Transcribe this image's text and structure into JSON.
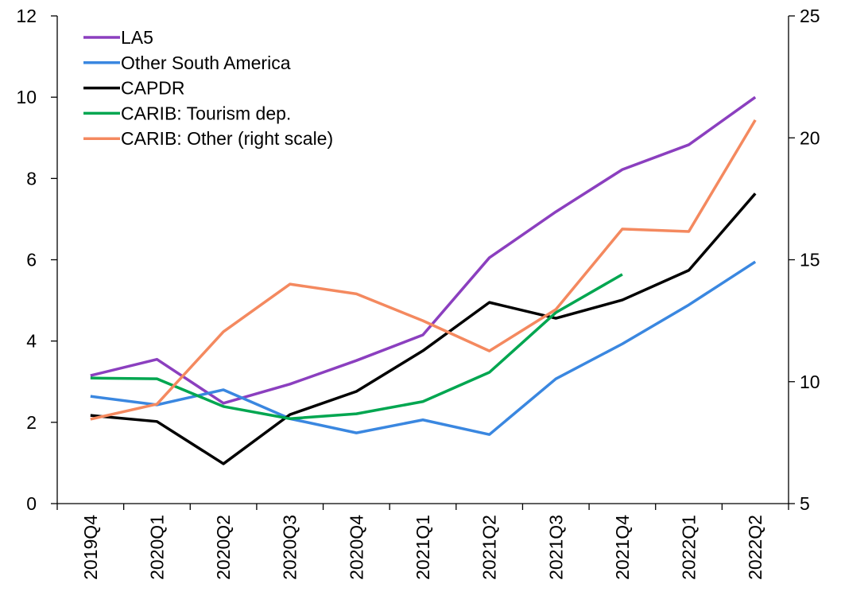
{
  "chart_data": {
    "type": "line",
    "categories": [
      "2019Q4",
      "2020Q1",
      "2020Q2",
      "2020Q3",
      "2020Q4",
      "2021Q1",
      "2021Q2",
      "2021Q3",
      "2021Q4",
      "2022Q1",
      "2022Q2"
    ],
    "series": [
      {
        "name": "LA5",
        "color": "#8b3fbf",
        "values": [
          3.15,
          3.55,
          2.47,
          2.94,
          3.52,
          4.15,
          6.05,
          7.18,
          8.22,
          8.83,
          10.0
        ]
      },
      {
        "name": "Other South America",
        "color": "#3a87e0",
        "values": [
          2.64,
          2.43,
          2.8,
          2.09,
          1.74,
          2.06,
          1.7,
          3.07,
          3.93,
          4.89,
          5.95
        ]
      },
      {
        "name": "CAPDR",
        "color": "#000000",
        "values": [
          2.17,
          2.02,
          0.98,
          2.19,
          2.76,
          3.76,
          4.95,
          4.56,
          5.01,
          5.74,
          7.63
        ]
      },
      {
        "name": "CARIB: Tourism dep.",
        "color": "#00a650",
        "values": [
          3.09,
          3.07,
          2.39,
          2.09,
          2.21,
          2.51,
          3.23,
          4.7,
          5.64,
          null,
          null
        ]
      },
      {
        "name": "CARIB: Other (right scale)",
        "color": "#f4895f",
        "axis": "y2",
        "values": [
          8.46,
          9.08,
          12.05,
          14.0,
          13.6,
          12.5,
          11.26,
          12.96,
          16.26,
          16.16,
          20.73
        ]
      }
    ],
    "ylim": [
      0,
      12
    ],
    "yticks": [
      0,
      2,
      4,
      6,
      8,
      10,
      12
    ],
    "y2lim": [
      5,
      25
    ],
    "y2ticks": [
      5,
      10,
      15,
      20,
      25
    ],
    "grid": false,
    "legend": "upper left"
  }
}
